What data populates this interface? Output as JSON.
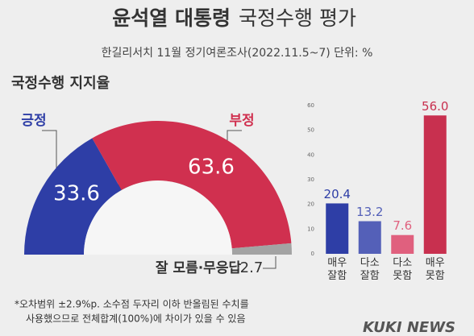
{
  "header": {
    "title_bold": "윤석열 대통령",
    "title_rest": "국정수행 평가",
    "subtitle": "한길리서치 11월 정기여론조사(2022.11.5~7) 단위: %"
  },
  "chart_data": [
    {
      "type": "pie",
      "title": "국정수행 지지율",
      "categories": [
        "긍정",
        "부정",
        "잘 모름·무응답"
      ],
      "values": [
        33.6,
        63.6,
        2.7
      ],
      "colors": [
        "#2e3ea6",
        "#d0304f",
        "#a3a3a3"
      ]
    },
    {
      "type": "bar",
      "categories": [
        "매우\n잘함",
        "다소\n잘함",
        "다소\n못함",
        "매우\n못함"
      ],
      "values": [
        20.4,
        13.2,
        7.6,
        56
      ],
      "value_labels": [
        "20.4",
        "13.2",
        "7.6",
        "56.0"
      ],
      "colors": [
        "#2e3ea6",
        "#5460b8",
        "#e0607e",
        "#c8304f"
      ],
      "ylim": [
        0,
        60
      ],
      "yticks": [
        0,
        10,
        20,
        30,
        40,
        50,
        60
      ],
      "grid": false
    }
  ],
  "footnote": [
    "*오차범위 ±2.9%p. 소수점 두자리 이하 반올림된 수치를",
    "사용했으므로 전체합계(100%)에 차이가 있을 수 있음"
  ],
  "brand": "KUKI NEWS"
}
